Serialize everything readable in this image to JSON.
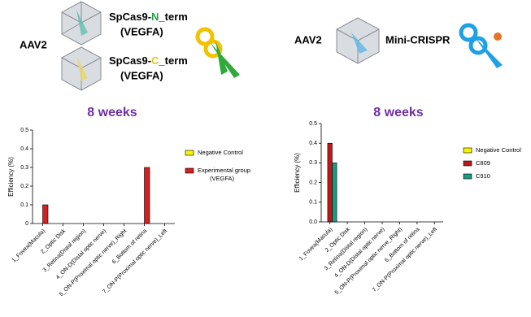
{
  "header": {
    "left": {
      "vector": "AAV2",
      "constructs": [
        {
          "parts": [
            "SpCas9-",
            "N",
            "_term"
          ],
          "target": "(VEGFA)"
        },
        {
          "parts": [
            "SpCas9-",
            "C",
            "_term"
          ],
          "target": "(VEGFA)"
        }
      ]
    },
    "right": {
      "vector": "AAV2",
      "construct": "Mini-CRISPR"
    }
  },
  "chart_data": [
    {
      "type": "bar",
      "title": "8 weeks",
      "y_label": "Efficiency (%)",
      "categories": [
        "1_Fovea(Macula)",
        "2_Optic Disk",
        "3_Retina(Distal region)",
        "4_ON-D(Distal optic nerve)",
        "5_ON-P(Proximal optic nerve)_Right",
        "6_Bottom of retina",
        "7_ON-P(Proximal optic nerve)_Left"
      ],
      "series": [
        {
          "name": "Negative Control",
          "color": "#f5f500",
          "values": [
            0,
            0,
            0,
            0,
            0,
            0,
            0
          ]
        },
        {
          "name": "Experimental group (VEGFA)",
          "color": "#d42020",
          "values": [
            0.1,
            0,
            0,
            0,
            0,
            0.3,
            0
          ]
        }
      ],
      "ylim": [
        0,
        0.5
      ],
      "yticks": [
        0,
        0.1,
        0.2,
        0.3,
        0.4,
        0.5
      ]
    },
    {
      "type": "bar",
      "title": "8 weeks",
      "y_label": "Efficiency (%)",
      "categories": [
        "1_Fovea(Macula)",
        "2_Optic Disk",
        "3_Retina(Distal region)",
        "4_ON-D(Distal optic nerve)",
        "5_ON-P(Proximal optic nerve_Right)",
        "6_Bottom of retina",
        "7_ON-P(Proximal optic nerve)_Left"
      ],
      "series": [
        {
          "name": "Negative Control",
          "color": "#f5f500",
          "values": [
            0,
            0,
            0,
            0,
            0,
            0,
            0
          ]
        },
        {
          "name": "C809",
          "color": "#c01818",
          "values": [
            0.4,
            0,
            0,
            0,
            0,
            0,
            0
          ]
        },
        {
          "name": "C910",
          "color": "#1a9a80",
          "values": [
            0.3,
            0,
            0,
            0,
            0,
            0,
            0
          ]
        }
      ],
      "ylim": [
        0,
        0.5
      ],
      "yticks": [
        {
          "value": 0,
          "label": "0.0"
        },
        0.1,
        0.2,
        0.3,
        0.4,
        0.5
      ]
    }
  ]
}
